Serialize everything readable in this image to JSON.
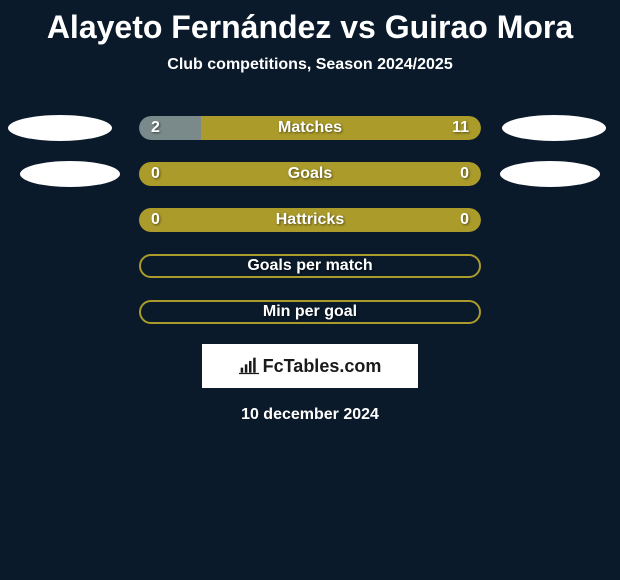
{
  "title": "Alayeto Fernández vs Guirao Mora",
  "subtitle": "Club competitions, Season 2024/2025",
  "date": "10 december 2024",
  "logo_text": "FcTables.com",
  "colors": {
    "background": "#0a1a2a",
    "accent_olive": "#aa9b2a",
    "accent_gray": "#7a8a8a",
    "badge_white": "#ffffff",
    "text_white": "#ffffff"
  },
  "stats": [
    {
      "label": "Matches",
      "left_value": "2",
      "right_value": "11",
      "left_pct": 18,
      "right_pct": 82,
      "left_color": "#7a8a8a",
      "right_color": "#aa9b2a",
      "show_badges": true,
      "badge_inset": false
    },
    {
      "label": "Goals",
      "left_value": "0",
      "right_value": "0",
      "left_pct": 0,
      "right_pct": 100,
      "left_color": "#7a8a8a",
      "right_color": "#aa9b2a",
      "show_badges": true,
      "badge_inset": true
    },
    {
      "label": "Hattricks",
      "left_value": "0",
      "right_value": "0",
      "left_pct": 0,
      "right_pct": 100,
      "left_color": "#7a8a8a",
      "right_color": "#aa9b2a",
      "show_badges": false,
      "badge_inset": false
    },
    {
      "label": "Goals per match",
      "left_value": "",
      "right_value": "",
      "left_pct": 0,
      "right_pct": 0,
      "left_color": "#aa9b2a",
      "right_color": "#aa9b2a",
      "outlined": true,
      "show_badges": false
    },
    {
      "label": "Min per goal",
      "left_value": "",
      "right_value": "",
      "left_pct": 0,
      "right_pct": 0,
      "left_color": "#aa9b2a",
      "right_color": "#aa9b2a",
      "outlined": true,
      "show_badges": false
    }
  ]
}
